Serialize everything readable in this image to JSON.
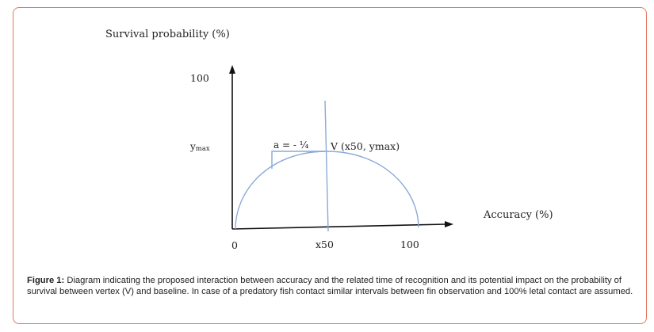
{
  "figure": {
    "y_axis_label": "Survival probability (%)",
    "x_axis_label": "Accuracy (%)",
    "y_tick_top": "100",
    "y_tick_ymax": "y",
    "y_tick_ymax_sub": "max",
    "x_tick_zero": "0",
    "x_tick_x50": "x50",
    "x_tick_100": "100",
    "slope_label": "a = - ¼",
    "vertex_label": "V (x50, ymax)",
    "colors": {
      "curve": "#8aa9d9",
      "axis": "#111111",
      "frame": "#e0785c"
    }
  },
  "caption": {
    "label": "Figure 1:",
    "text": " Diagram indicating the proposed interaction between accuracy and the related time of recognition and its potential impact on the probability of survival between vertex (V) and baseline. In case of a predatory fish contact similar intervals between fin observation and 100% letal contact are assumed."
  }
}
